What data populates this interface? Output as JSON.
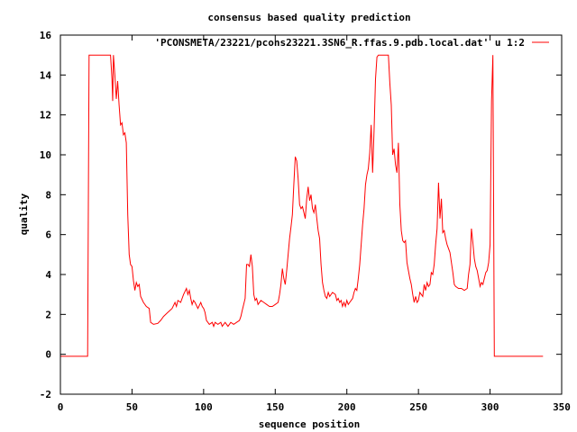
{
  "chart_data": {
    "type": "line",
    "title": "consensus based quality prediction",
    "xlabel": "sequence position",
    "ylabel": "quality",
    "xlim": [
      0,
      350
    ],
    "ylim": [
      -2,
      16
    ],
    "xticks": [
      0,
      50,
      100,
      150,
      200,
      250,
      300,
      350
    ],
    "yticks": [
      -2,
      0,
      2,
      4,
      6,
      8,
      10,
      12,
      14,
      16
    ],
    "grid": false,
    "legend_position": "top-right",
    "series": [
      {
        "name": "'PCONSMETA/23221/pcons23221.3SN6_R.ffas.9.pdb.local.dat' u 1:2",
        "color": "#ff0000",
        "points": [
          [
            0,
            -0.1
          ],
          [
            19,
            -0.1
          ],
          [
            19.5,
            7.5
          ],
          [
            20,
            15
          ],
          [
            35,
            15
          ],
          [
            36,
            13.8
          ],
          [
            36.5,
            12.7
          ],
          [
            37,
            15
          ],
          [
            38,
            14
          ],
          [
            39,
            12.8
          ],
          [
            40,
            13.7
          ],
          [
            41,
            12.5
          ],
          [
            42,
            11.5
          ],
          [
            43,
            11.6
          ],
          [
            44,
            11
          ],
          [
            45,
            11.1
          ],
          [
            46,
            10.6
          ],
          [
            47,
            7
          ],
          [
            48,
            5
          ],
          [
            49,
            4.5
          ],
          [
            50,
            4.4
          ],
          [
            51,
            3.7
          ],
          [
            52,
            3.2
          ],
          [
            53,
            3.6
          ],
          [
            54,
            3.4
          ],
          [
            55,
            3.5
          ],
          [
            56,
            2.9
          ],
          [
            58,
            2.6
          ],
          [
            60,
            2.4
          ],
          [
            62,
            2.3
          ],
          [
            63,
            1.6
          ],
          [
            65,
            1.5
          ],
          [
            68,
            1.55
          ],
          [
            70,
            1.7
          ],
          [
            72,
            1.9
          ],
          [
            75,
            2.1
          ],
          [
            78,
            2.3
          ],
          [
            80,
            2.6
          ],
          [
            81,
            2.4
          ],
          [
            82,
            2.7
          ],
          [
            84,
            2.6
          ],
          [
            86,
            3
          ],
          [
            88,
            3.3
          ],
          [
            89,
            3.0
          ],
          [
            90,
            3.2
          ],
          [
            91,
            2.8
          ],
          [
            92,
            2.5
          ],
          [
            93,
            2.7
          ],
          [
            94,
            2.6
          ],
          [
            96,
            2.3
          ],
          [
            98,
            2.6
          ],
          [
            99,
            2.4
          ],
          [
            100,
            2.3
          ],
          [
            101,
            2.1
          ],
          [
            102,
            1.7
          ],
          [
            104,
            1.5
          ],
          [
            106,
            1.6
          ],
          [
            107,
            1.4
          ],
          [
            108,
            1.6
          ],
          [
            110,
            1.5
          ],
          [
            112,
            1.6
          ],
          [
            113,
            1.4
          ],
          [
            115,
            1.6
          ],
          [
            117,
            1.4
          ],
          [
            119,
            1.6
          ],
          [
            121,
            1.5
          ],
          [
            123,
            1.6
          ],
          [
            125,
            1.7
          ],
          [
            126,
            1.9
          ],
          [
            127,
            2.2
          ],
          [
            128,
            2.5
          ],
          [
            129,
            2.8
          ],
          [
            130,
            4.5
          ],
          [
            131,
            4.5
          ],
          [
            132,
            4.4
          ],
          [
            133,
            5
          ],
          [
            134,
            4.4
          ],
          [
            135,
            3
          ],
          [
            136,
            2.7
          ],
          [
            137,
            2.8
          ],
          [
            138,
            2.5
          ],
          [
            140,
            2.7
          ],
          [
            142,
            2.6
          ],
          [
            144,
            2.5
          ],
          [
            146,
            2.4
          ],
          [
            148,
            2.4
          ],
          [
            150,
            2.5
          ],
          [
            152,
            2.6
          ],
          [
            153,
            3
          ],
          [
            154,
            3.5
          ],
          [
            155,
            4.3
          ],
          [
            156,
            3.8
          ],
          [
            157,
            3.5
          ],
          [
            158,
            4.2
          ],
          [
            159,
            5
          ],
          [
            160,
            5.8
          ],
          [
            161,
            6.4
          ],
          [
            162,
            7.0
          ],
          [
            163,
            8.5
          ],
          [
            164,
            9.9
          ],
          [
            165,
            9.7
          ],
          [
            166,
            8.8
          ],
          [
            167,
            7.5
          ],
          [
            168,
            7.3
          ],
          [
            169,
            7.4
          ],
          [
            170,
            7.1
          ],
          [
            171,
            6.8
          ],
          [
            172,
            7.8
          ],
          [
            173,
            8.4
          ],
          [
            174,
            7.7
          ],
          [
            175,
            8
          ],
          [
            176,
            7.3
          ],
          [
            177,
            7.1
          ],
          [
            178,
            7.5
          ],
          [
            179,
            6.8
          ],
          [
            180,
            6.2
          ],
          [
            181,
            5.8
          ],
          [
            182,
            4.5
          ],
          [
            183,
            3.6
          ],
          [
            184,
            3.2
          ],
          [
            185,
            2.9
          ],
          [
            186,
            2.8
          ],
          [
            187,
            3.1
          ],
          [
            188,
            2.9
          ],
          [
            190,
            3.1
          ],
          [
            192,
            3.0
          ],
          [
            193,
            2.7
          ],
          [
            194,
            2.8
          ],
          [
            195,
            2.6
          ],
          [
            196,
            2.7
          ],
          [
            197,
            2.4
          ],
          [
            198,
            2.6
          ],
          [
            199,
            2.4
          ],
          [
            200,
            2.7
          ],
          [
            201,
            2.5
          ],
          [
            202,
            2.6
          ],
          [
            204,
            2.8
          ],
          [
            205,
            3.1
          ],
          [
            206,
            3.3
          ],
          [
            207,
            3.2
          ],
          [
            208,
            3.8
          ],
          [
            209,
            4.5
          ],
          [
            210,
            5.5
          ],
          [
            211,
            6.5
          ],
          [
            212,
            7.3
          ],
          [
            213,
            8.5
          ],
          [
            214,
            9
          ],
          [
            215,
            9.3
          ],
          [
            216,
            10.1
          ],
          [
            217,
            11.5
          ],
          [
            218,
            9.1
          ],
          [
            219,
            11.2
          ],
          [
            220,
            13.8
          ],
          [
            221,
            14.9
          ],
          [
            222,
            15
          ],
          [
            229,
            15
          ],
          [
            230,
            13.6
          ],
          [
            231,
            12.5
          ],
          [
            232,
            10
          ],
          [
            233,
            10.3
          ],
          [
            234,
            9.5
          ],
          [
            235,
            9.1
          ],
          [
            236,
            10.6
          ],
          [
            237,
            7.5
          ],
          [
            238,
            6.2
          ],
          [
            239,
            5.7
          ],
          [
            240,
            5.6
          ],
          [
            241,
            5.7
          ],
          [
            242,
            4.6
          ],
          [
            243,
            4.2
          ],
          [
            244,
            3.8
          ],
          [
            245,
            3.5
          ],
          [
            246,
            3.0
          ],
          [
            247,
            2.6
          ],
          [
            248,
            2.9
          ],
          [
            249,
            2.6
          ],
          [
            250,
            2.7
          ],
          [
            251,
            3.1
          ],
          [
            252,
            3.0
          ],
          [
            253,
            2.9
          ],
          [
            254,
            3.5
          ],
          [
            255,
            3.2
          ],
          [
            256,
            3.6
          ],
          [
            257,
            3.4
          ],
          [
            258,
            3.5
          ],
          [
            259,
            4.1
          ],
          [
            260,
            4.0
          ],
          [
            261,
            4.5
          ],
          [
            262,
            5.5
          ],
          [
            263,
            6.3
          ],
          [
            264,
            8.6
          ],
          [
            265,
            6.8
          ],
          [
            266,
            7.8
          ],
          [
            267,
            6.1
          ],
          [
            268,
            6.2
          ],
          [
            269,
            5.8
          ],
          [
            270,
            5.5
          ],
          [
            271,
            5.3
          ],
          [
            272,
            5.1
          ],
          [
            273,
            4.6
          ],
          [
            274,
            4.1
          ],
          [
            275,
            3.5
          ],
          [
            276,
            3.4
          ],
          [
            278,
            3.3
          ],
          [
            280,
            3.3
          ],
          [
            282,
            3.2
          ],
          [
            284,
            3.3
          ],
          [
            285,
            4
          ],
          [
            286,
            4.5
          ],
          [
            287,
            6.3
          ],
          [
            288,
            5.6
          ],
          [
            289,
            4.8
          ],
          [
            290,
            4.4
          ],
          [
            291,
            4.2
          ],
          [
            292,
            3.8
          ],
          [
            293,
            3.4
          ],
          [
            294,
            3.6
          ],
          [
            295,
            3.5
          ],
          [
            296,
            3.8
          ],
          [
            297,
            4.1
          ],
          [
            298,
            4.2
          ],
          [
            299,
            4.6
          ],
          [
            300,
            5.5
          ],
          [
            301,
            12.7
          ],
          [
            302,
            15
          ],
          [
            303,
            -0.1
          ],
          [
            337,
            -0.1
          ]
        ]
      }
    ]
  }
}
